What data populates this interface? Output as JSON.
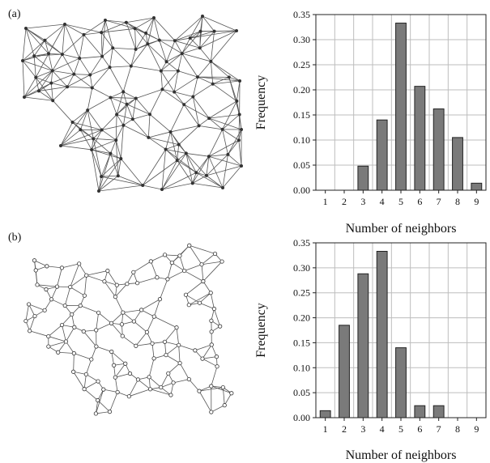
{
  "panels": [
    {
      "label": "(a)"
    },
    {
      "label": "(b)"
    }
  ],
  "colors": {
    "bar_fill": "#7a7a7a",
    "bar_stroke": "#222222",
    "grid": "#bdbdbd",
    "network": "#555555"
  },
  "chart_data": [
    {
      "type": "bar",
      "categories": [
        "1",
        "2",
        "3",
        "4",
        "5",
        "6",
        "7",
        "8",
        "9"
      ],
      "values": [
        0,
        0,
        0.048,
        0.14,
        0.333,
        0.207,
        0.162,
        0.105,
        0.014
      ],
      "xlabel": "Number of neighbors",
      "ylabel": "Frequency",
      "ylim": [
        0,
        0.35
      ],
      "yticks": [
        "0.00",
        "0.05",
        "0.10",
        "0.15",
        "0.20",
        "0.25",
        "0.30",
        "0.35"
      ],
      "grid": true
    },
    {
      "type": "bar",
      "categories": [
        "1",
        "2",
        "3",
        "4",
        "5",
        "6",
        "7",
        "8",
        "9"
      ],
      "values": [
        0.014,
        0.185,
        0.288,
        0.333,
        0.14,
        0.024,
        0.024,
        0,
        0
      ],
      "xlabel": "Number of neighbors",
      "ylabel": "Frequency",
      "ylim": [
        0,
        0.35
      ],
      "yticks": [
        "0.00",
        "0.05",
        "0.10",
        "0.15",
        "0.20",
        "0.25",
        "0.30",
        "0.35"
      ],
      "grid": true
    }
  ]
}
